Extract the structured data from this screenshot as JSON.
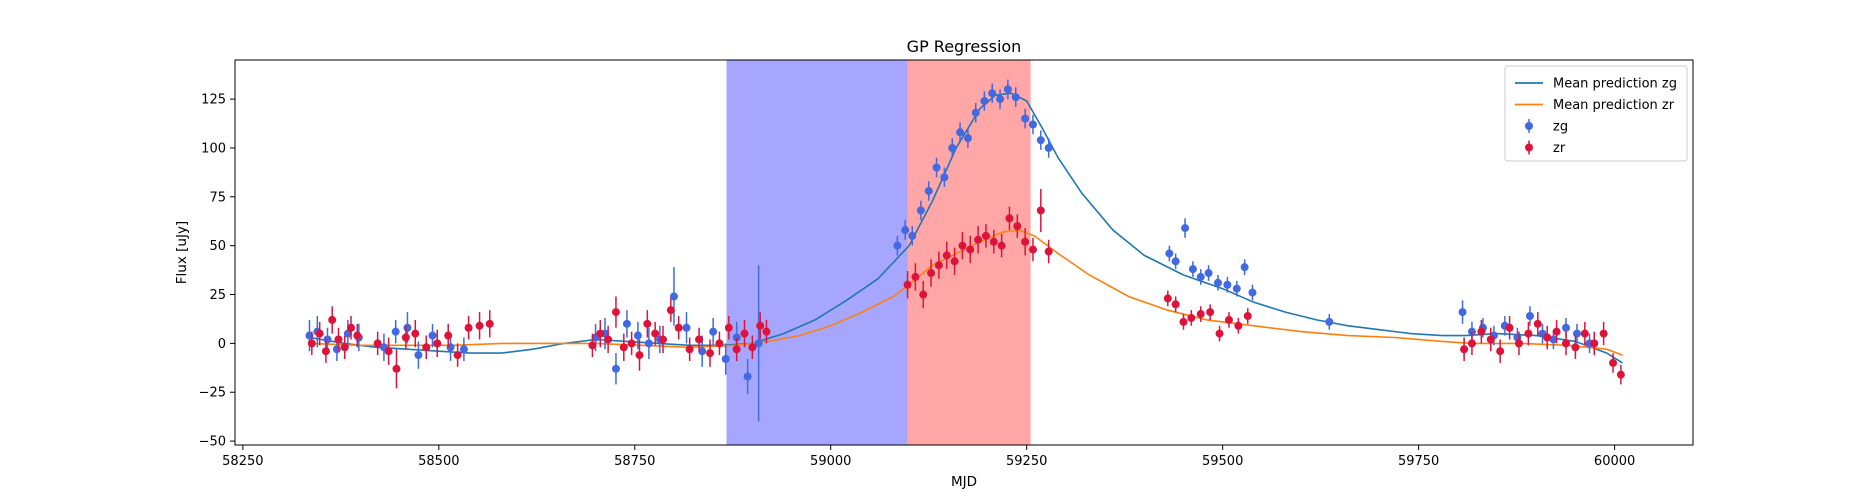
{
  "chart_data": {
    "type": "scatter",
    "title": "GP Regression",
    "xlabel": "MJD",
    "ylabel": "Flux [uJy]",
    "xlim": [
      58240,
      60100
    ],
    "ylim": [
      -52,
      145
    ],
    "xticks": [
      58250,
      58500,
      58750,
      59000,
      59250,
      59500,
      59750,
      60000
    ],
    "yticks": [
      -50,
      -25,
      0,
      25,
      50,
      75,
      100,
      125
    ],
    "legend_position": "top-right",
    "legend": [
      {
        "label": "Mean prediction zg",
        "kind": "line",
        "color": "#1f77b4"
      },
      {
        "label": "Mean prediction zr",
        "kind": "line",
        "color": "#ff7f0e"
      },
      {
        "label": "zg",
        "kind": "errorbar",
        "color": "#4169e1"
      },
      {
        "label": "zr",
        "kind": "errorbar",
        "color": "#dc143c"
      }
    ],
    "shaded_regions": [
      {
        "name": "blue-band",
        "x0": 58867,
        "x1": 59098,
        "color": "#0000ff",
        "alpha": 0.35
      },
      {
        "name": "red-band",
        "x0": 59098,
        "x1": 59255,
        "color": "#ff0000",
        "alpha": 0.35
      }
    ],
    "series": [
      {
        "name": "Mean prediction zg",
        "type": "line",
        "color": "#1f77b4",
        "x": [
          58335,
          58380,
          58420,
          58460,
          58500,
          58540,
          58580,
          58620,
          58660,
          58700,
          58740,
          58780,
          58820,
          58860,
          58900,
          58940,
          58980,
          59020,
          59060,
          59100,
          59130,
          59160,
          59190,
          59210,
          59230,
          59250,
          59270,
          59290,
          59320,
          59360,
          59400,
          59450,
          59500,
          59540,
          59580,
          59620,
          59660,
          59700,
          59740,
          59780,
          59810,
          59850,
          59900,
          59950,
          59990,
          60010
        ],
        "y": [
          3,
          0,
          -2,
          -3,
          -4,
          -5,
          -5,
          -3,
          0,
          2,
          1,
          0,
          -1,
          -1,
          0,
          5,
          12,
          22,
          33,
          50,
          73,
          100,
          120,
          127,
          128,
          124,
          110,
          95,
          77,
          58,
          45,
          35,
          28,
          21,
          16,
          12,
          9,
          7,
          5,
          4,
          4,
          5,
          4,
          1,
          -5,
          -10
        ]
      },
      {
        "name": "Mean prediction zr",
        "type": "line",
        "color": "#ff7f0e",
        "x": [
          58335,
          58400,
          58460,
          58520,
          58580,
          58640,
          58700,
          58760,
          58820,
          58880,
          58920,
          58960,
          59000,
          59040,
          59080,
          59100,
          59130,
          59160,
          59190,
          59220,
          59240,
          59260,
          59290,
          59330,
          59380,
          59430,
          59480,
          59540,
          59600,
          59660,
          59720,
          59780,
          59820,
          59880,
          59940,
          59990,
          60010
        ],
        "y": [
          0,
          -1,
          -1,
          -1,
          0,
          0,
          0,
          -1,
          -2,
          -1,
          1,
          4,
          9,
          16,
          24,
          30,
          40,
          46,
          52,
          57,
          58,
          55,
          46,
          35,
          24,
          17,
          12,
          9,
          6,
          4,
          3,
          1,
          0,
          0,
          -1,
          -3,
          -6
        ]
      },
      {
        "name": "zg",
        "type": "errorbar",
        "color": "#4169e1",
        "x": [
          58335,
          58345,
          58358,
          58370,
          58384,
          58398,
          58430,
          58445,
          58460,
          58474,
          58492,
          58515,
          58532,
          58700,
          58712,
          58726,
          58740,
          58754,
          58768,
          58782,
          58800,
          58816,
          58836,
          58850,
          58866,
          58880,
          58894,
          58908,
          59085,
          59095,
          59104,
          59115,
          59125,
          59135,
          59145,
          59155,
          59165,
          59175,
          59185,
          59196,
          59206,
          59216,
          59226,
          59236,
          59248,
          59258,
          59268,
          59278,
          59432,
          59440,
          59452,
          59462,
          59472,
          59482,
          59494,
          59506,
          59518,
          59528,
          59538,
          59636,
          59806,
          59818,
          59832,
          59846,
          59860,
          59876,
          59892,
          59908,
          59922,
          59938,
          59952,
          59968
        ],
        "y": [
          4,
          6,
          2,
          -3,
          5,
          3,
          -2,
          6,
          8,
          -6,
          4,
          -2,
          -3,
          3,
          5,
          -13,
          10,
          4,
          0,
          2,
          24,
          8,
          -4,
          6,
          -8,
          3,
          -17,
          0,
          50,
          58,
          55,
          68,
          78,
          90,
          85,
          100,
          108,
          105,
          118,
          124,
          128,
          125,
          130,
          126,
          115,
          112,
          104,
          100,
          46,
          42,
          59,
          38,
          34,
          36,
          31,
          30,
          28,
          39,
          26,
          11,
          16,
          6,
          8,
          4,
          9,
          3,
          14,
          5,
          2,
          8,
          5,
          0
        ],
        "yerr": [
          8,
          8,
          6,
          6,
          7,
          7,
          7,
          6,
          8,
          7,
          6,
          7,
          6,
          7,
          8,
          8,
          7,
          7,
          8,
          7,
          15,
          8,
          8,
          7,
          8,
          8,
          9,
          40,
          5,
          5,
          5,
          5,
          5,
          5,
          5,
          5,
          5,
          5,
          5,
          5,
          5,
          5,
          5,
          5,
          5,
          5,
          5,
          5,
          4,
          4,
          5,
          4,
          4,
          4,
          4,
          4,
          4,
          4,
          4,
          4,
          6,
          5,
          5,
          5,
          5,
          5,
          5,
          5,
          5,
          5,
          5,
          5
        ]
      },
      {
        "name": "zr",
        "type": "errorbar",
        "color": "#dc143c",
        "x": [
          58338,
          58348,
          58356,
          58364,
          58372,
          58380,
          58388,
          58396,
          58422,
          58436,
          58446,
          58458,
          58470,
          58484,
          58498,
          58512,
          58524,
          58538,
          58552,
          58565,
          58696,
          58706,
          58716,
          58726,
          58736,
          58746,
          58756,
          58766,
          58776,
          58786,
          58796,
          58806,
          58820,
          58832,
          58846,
          58858,
          58870,
          58880,
          58890,
          58900,
          58910,
          58918,
          59098,
          59108,
          59118,
          59128,
          59138,
          59148,
          59158,
          59168,
          59178,
          59188,
          59198,
          59208,
          59218,
          59228,
          59238,
          59248,
          59258,
          59268,
          59278,
          59430,
          59440,
          59450,
          59460,
          59472,
          59484,
          59496,
          59508,
          59520,
          59532,
          59808,
          59818,
          59830,
          59842,
          59854,
          59866,
          59878,
          59890,
          59902,
          59914,
          59926,
          59938,
          59950,
          59962,
          59974,
          59986,
          59998,
          60008
        ],
        "y": [
          0,
          5,
          -4,
          12,
          2,
          -2,
          8,
          4,
          0,
          -4,
          -13,
          3,
          5,
          -2,
          0,
          4,
          -6,
          8,
          9,
          10,
          -1,
          5,
          2,
          16,
          -2,
          0,
          -6,
          10,
          5,
          2,
          17,
          8,
          -3,
          2,
          -5,
          0,
          8,
          -3,
          5,
          -2,
          9,
          6,
          30,
          34,
          25,
          36,
          40,
          45,
          42,
          50,
          48,
          53,
          55,
          52,
          50,
          64,
          60,
          52,
          48,
          68,
          47,
          23,
          20,
          11,
          13,
          15,
          16,
          5,
          12,
          9,
          14,
          -3,
          0,
          6,
          2,
          -4,
          8,
          0,
          5,
          10,
          3,
          6,
          0,
          -2,
          5,
          0,
          5,
          -10,
          -16
        ],
        "yerr": [
          6,
          6,
          6,
          7,
          6,
          6,
          6,
          6,
          6,
          7,
          10,
          6,
          7,
          6,
          7,
          6,
          6,
          6,
          7,
          7,
          6,
          7,
          7,
          8,
          7,
          6,
          8,
          7,
          6,
          7,
          6,
          6,
          6,
          6,
          7,
          6,
          6,
          6,
          7,
          6,
          7,
          6,
          7,
          7,
          7,
          7,
          7,
          7,
          7,
          7,
          7,
          7,
          6,
          6,
          6,
          6,
          6,
          7,
          6,
          11,
          6,
          4,
          4,
          4,
          4,
          4,
          4,
          4,
          4,
          4,
          4,
          6,
          6,
          6,
          6,
          6,
          6,
          6,
          6,
          6,
          6,
          6,
          6,
          6,
          6,
          6,
          6,
          5,
          5
        ]
      }
    ]
  }
}
